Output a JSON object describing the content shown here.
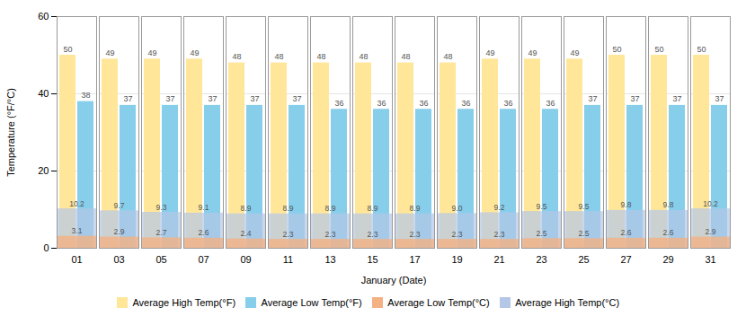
{
  "chart_data": {
    "type": "bar",
    "xlabel": "January (Date)",
    "ylabel": "Temperature (°F/°C)",
    "categories": [
      "01",
      "03",
      "05",
      "07",
      "09",
      "11",
      "13",
      "15",
      "17",
      "19",
      "21",
      "23",
      "25",
      "27",
      "29",
      "31"
    ],
    "series": [
      {
        "name": "Average High Temp(°F)",
        "color": "#FFE699",
        "type": "bar",
        "values": [
          50,
          49,
          49,
          49,
          48,
          48,
          48,
          48,
          48,
          48,
          49,
          49,
          49,
          50,
          50,
          50
        ]
      },
      {
        "name": "Average Low Temp(°F)",
        "color": "#87CEEB",
        "type": "bar",
        "values": [
          38,
          37,
          37,
          37,
          37,
          37,
          36,
          36,
          36,
          36,
          36,
          36,
          37,
          37,
          37,
          37
        ]
      },
      {
        "name": "Average Low Temp(°C)",
        "color": "#F4B183",
        "type": "area",
        "values": [
          3.1,
          2.9,
          2.7,
          2.6,
          2.4,
          2.3,
          2.3,
          2.3,
          2.3,
          2.3,
          2.3,
          2.5,
          2.5,
          2.6,
          2.6,
          2.9
        ]
      },
      {
        "name": "Average High Temp(°C)",
        "color": "#B4C7E7",
        "type": "area",
        "values": [
          10.2,
          9.7,
          9.3,
          9.1,
          8.9,
          8.9,
          8.9,
          8.9,
          8.9,
          9.0,
          9.2,
          9.5,
          9.5,
          9.8,
          9.8,
          10.2
        ],
        "value_labels": [
          "10.2",
          "9.7",
          "9.3",
          "9.1",
          "8.9",
          "8.9",
          "8.9",
          "8.9",
          "8.9",
          "9.0",
          "9.2",
          "9.5",
          "9.5",
          "9.8",
          "9.8",
          "10.2"
        ]
      }
    ],
    "ylim": [
      0,
      60
    ],
    "yticks": [
      0,
      20,
      40,
      60
    ],
    "grid": true,
    "data_labels": true,
    "legend": "bottom"
  }
}
